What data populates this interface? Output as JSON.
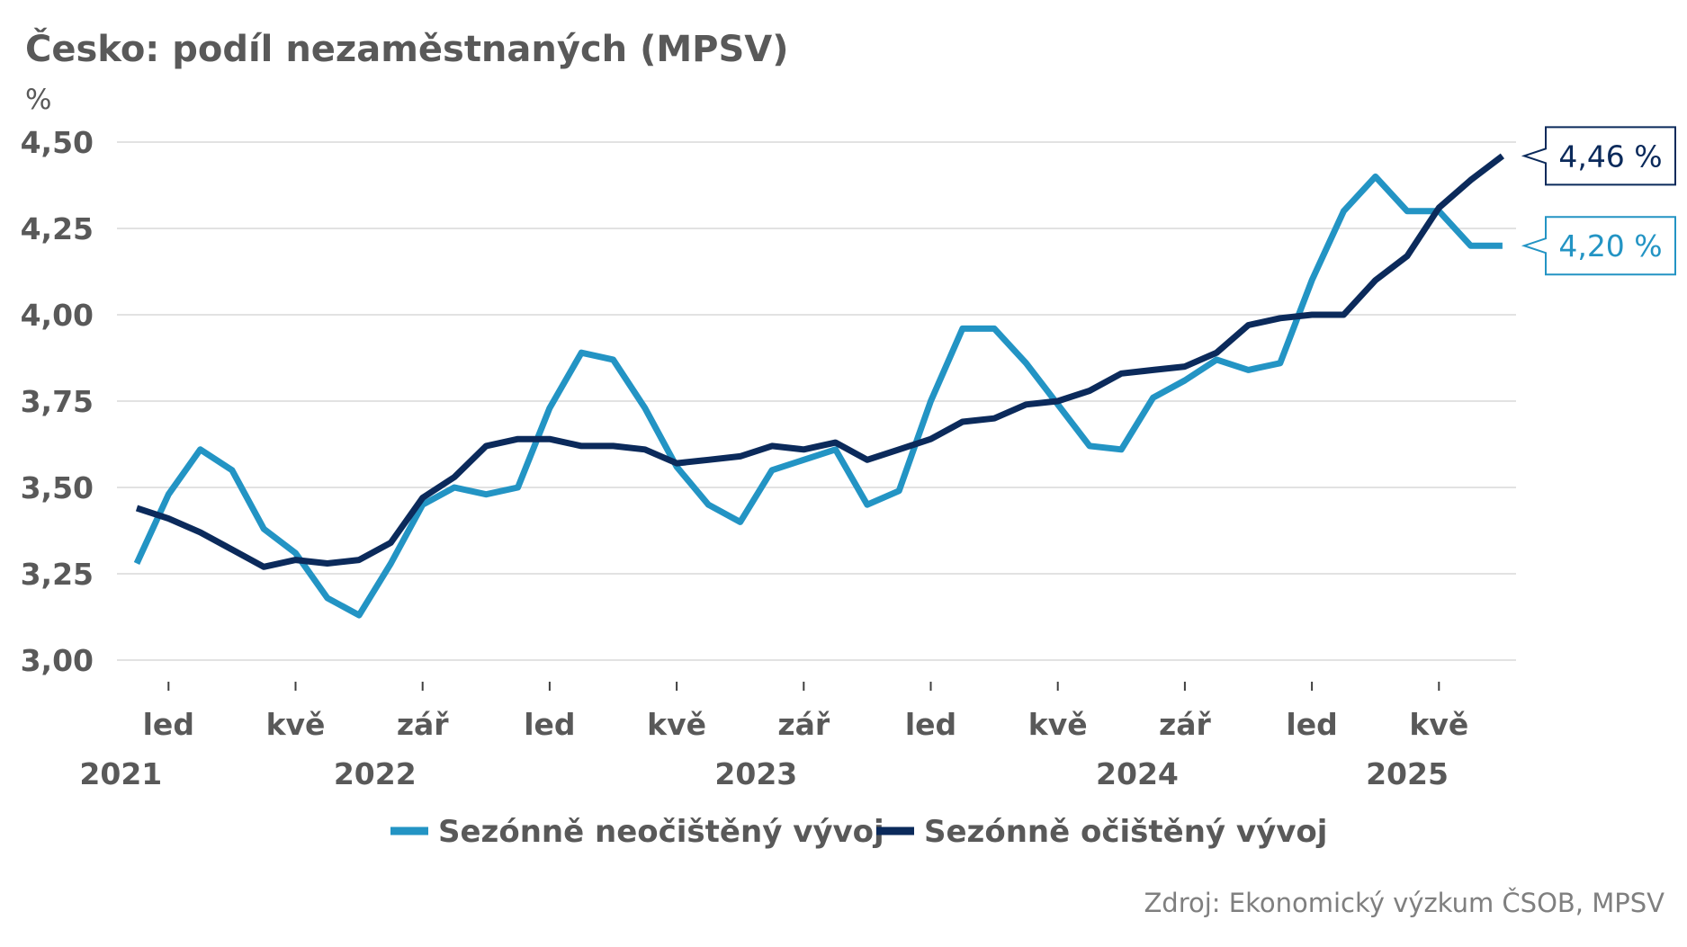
{
  "title": "Česko: podíl nezaměstnaných (MPSV)",
  "unit_label": "%",
  "source": "Zdroj: Ekonomický výzkum ČSOB, MPSV",
  "colors": {
    "unadjusted": "#2394C4",
    "adjusted": "#0B2A5B",
    "text": "#595959",
    "grid": "#D9D9D9"
  },
  "callouts": [
    {
      "series": "adjusted",
      "text": "4,46 %"
    },
    {
      "series": "unadjusted",
      "text": "4,20 %"
    }
  ],
  "chart_data": {
    "type": "line",
    "y_ticks": [
      "3,00",
      "3,25",
      "3,50",
      "3,75",
      "4,00",
      "4,25",
      "4,50"
    ],
    "ylim": [
      3.0,
      4.5
    ],
    "grid": true,
    "legend_position": "bottom",
    "x_labels": [
      {
        "index": 1,
        "label": "led"
      },
      {
        "index": 5,
        "label": "kvě"
      },
      {
        "index": 9,
        "label": "zář"
      },
      {
        "index": 13,
        "label": "led"
      },
      {
        "index": 17,
        "label": "kvě"
      },
      {
        "index": 21,
        "label": "zář"
      },
      {
        "index": 25,
        "label": "led"
      },
      {
        "index": 29,
        "label": "kvě"
      },
      {
        "index": 33,
        "label": "zář"
      },
      {
        "index": 37,
        "label": "led"
      },
      {
        "index": 41,
        "label": "kvě"
      }
    ],
    "year_labels": [
      {
        "index": -0.5,
        "label": "2021"
      },
      {
        "index": 7.5,
        "label": "2022"
      },
      {
        "index": 19.5,
        "label": "2023"
      },
      {
        "index": 31.5,
        "label": "2024"
      },
      {
        "index": 40,
        "label": "2025"
      }
    ],
    "series": [
      {
        "name": "Sezónně neočištěný vývoj",
        "key": "unadjusted",
        "values": [
          3.28,
          3.48,
          3.61,
          3.55,
          3.38,
          3.31,
          3.18,
          3.13,
          3.28,
          3.45,
          3.5,
          3.48,
          3.5,
          3.73,
          3.89,
          3.87,
          3.73,
          3.56,
          3.45,
          3.4,
          3.55,
          3.58,
          3.61,
          3.45,
          3.49,
          3.75,
          3.96,
          3.96,
          3.86,
          3.74,
          3.62,
          3.61,
          3.76,
          3.81,
          3.87,
          3.84,
          3.86,
          4.1,
          4.3,
          4.4,
          4.3,
          4.3,
          4.2,
          4.2
        ]
      },
      {
        "name": "Sezónně očištěný vývoj",
        "key": "adjusted",
        "values": [
          3.44,
          3.41,
          3.37,
          3.32,
          3.27,
          3.29,
          3.28,
          3.29,
          3.34,
          3.47,
          3.53,
          3.62,
          3.64,
          3.64,
          3.62,
          3.62,
          3.61,
          3.57,
          3.58,
          3.59,
          3.62,
          3.61,
          3.63,
          3.58,
          3.61,
          3.64,
          3.69,
          3.7,
          3.74,
          3.75,
          3.78,
          3.83,
          3.84,
          3.85,
          3.89,
          3.97,
          3.99,
          4.0,
          4.0,
          4.1,
          4.17,
          4.31,
          4.39,
          4.46
        ]
      }
    ]
  }
}
